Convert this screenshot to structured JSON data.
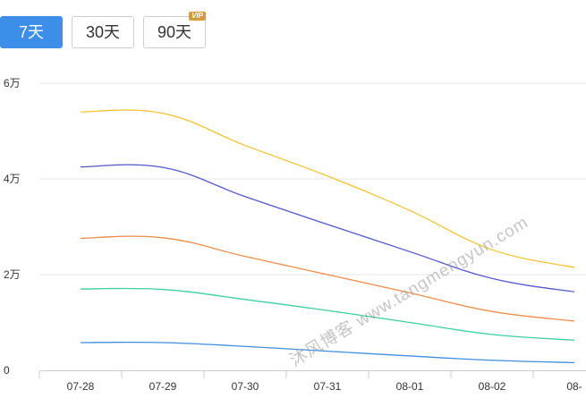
{
  "range_selector": {
    "buttons": [
      {
        "label": "7天",
        "active": true
      },
      {
        "label": "30天",
        "active": false
      },
      {
        "label": "90天",
        "active": false,
        "badge": "VIP"
      }
    ]
  },
  "watermark": "沐风博客 www.tangmengyun.com",
  "colors": {
    "accent": "#3d8ee8",
    "grid": "#e6e6e6",
    "axis": "#cccccc"
  },
  "chart_data": {
    "type": "line",
    "categories": [
      "07-28",
      "07-29",
      "07-30",
      "07-31",
      "08-01",
      "08-02",
      "08-"
    ],
    "y_ticks": [
      {
        "value": 0,
        "label": "0"
      },
      {
        "value": 20000,
        "label": "2万"
      },
      {
        "value": 40000,
        "label": "4万"
      },
      {
        "value": 60000,
        "label": "6万"
      }
    ],
    "ylim": [
      0,
      60000
    ],
    "grid": true,
    "legend": "none",
    "series": [
      {
        "color": "#f5c330",
        "values": [
          54000,
          53700,
          47000,
          40600,
          33400,
          25200,
          21500
        ]
      },
      {
        "color": "#5258c9",
        "values": [
          42500,
          42400,
          36300,
          30500,
          24800,
          19200,
          16400
        ]
      },
      {
        "color": "#f08c48",
        "values": [
          27600,
          27700,
          23800,
          20000,
          16200,
          12300,
          10300
        ]
      },
      {
        "color": "#3ccfa3",
        "values": [
          17000,
          16900,
          14800,
          12500,
          10000,
          7500,
          6300
        ]
      },
      {
        "color": "#3f8fe0",
        "values": [
          5800,
          5800,
          5000,
          4000,
          3000,
          2100,
          1600
        ]
      }
    ]
  }
}
